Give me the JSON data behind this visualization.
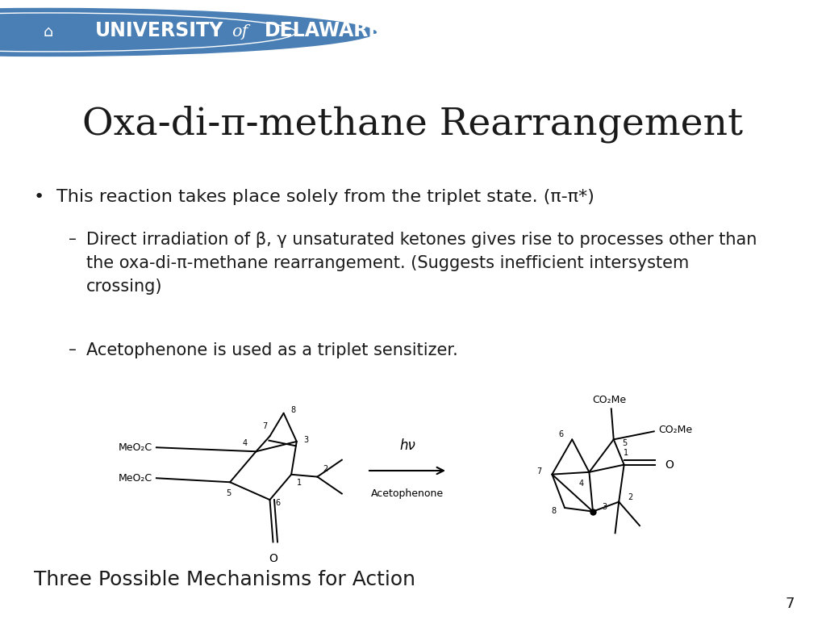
{
  "bg_color": "#ffffff",
  "header_color": "#003a70",
  "header_accent_color": "#f5c518",
  "title": "Oxa-di-π-methane Rearrangement",
  "title_fontsize": 34,
  "bullet1": "This reaction takes place solely from the triplet state. (π-π*)",
  "sub1": "Direct irradiation of β, γ unsaturated ketones gives rise to processes other than\nthe oxa-di-π-methane rearrangement. (Suggests inefficient intersystem\ncrossing)",
  "sub2": "Acetophenone is used as a triplet sensitizer.",
  "footer_text": "Three Possible Mechanisms for Action",
  "page_num": "7",
  "text_color": "#1a1a1a",
  "body_fontsize": 16,
  "sub_fontsize": 15
}
